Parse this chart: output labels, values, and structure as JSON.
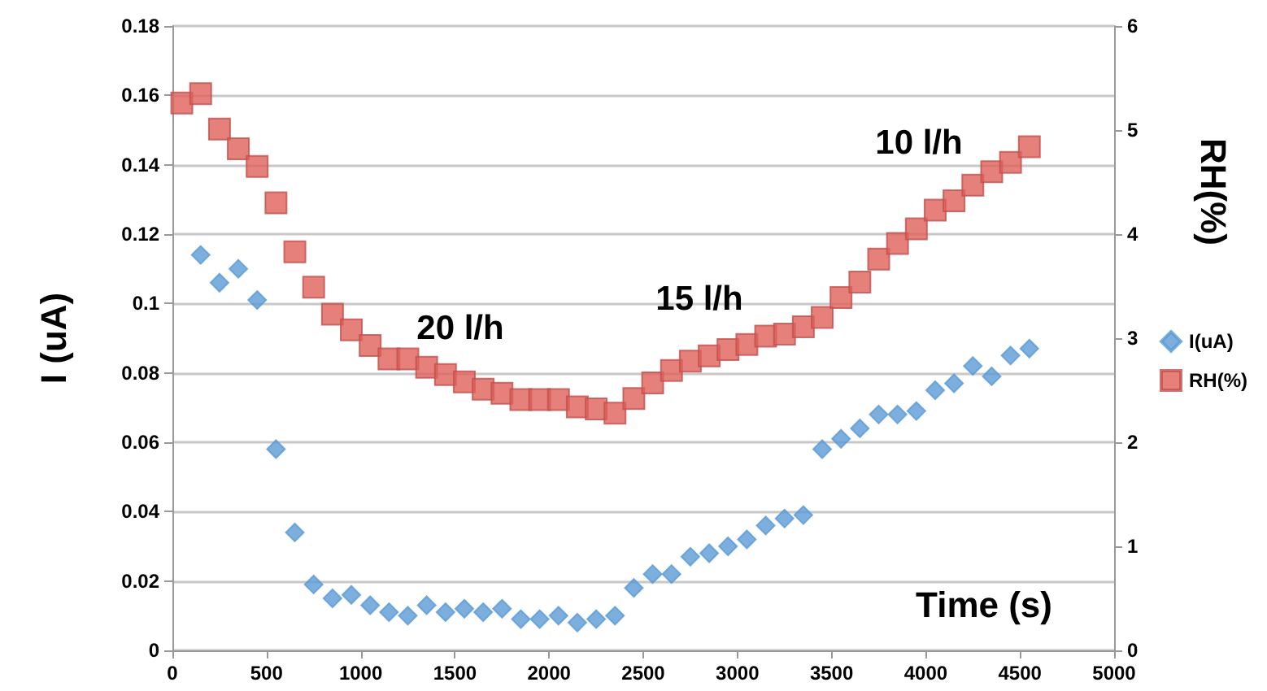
{
  "chart_data": {
    "type": "scatter",
    "xlabel": "Time (s)",
    "ylabel": "I (uA)",
    "y2label": "RH(%)",
    "x": [
      50,
      150,
      250,
      350,
      450,
      550,
      650,
      750,
      850,
      950,
      1050,
      1150,
      1250,
      1350,
      1450,
      1550,
      1650,
      1750,
      1850,
      1950,
      2050,
      2150,
      2250,
      2350,
      2450,
      2550,
      2650,
      2750,
      2850,
      2950,
      3050,
      3150,
      3250,
      3350,
      3450,
      3550,
      3650,
      3750,
      3850,
      3950,
      4050,
      4150,
      4250,
      4350,
      4450,
      4550
    ],
    "series": [
      {
        "name": "I(uA)",
        "color": "#5b9bd5",
        "marker": "diamond",
        "values": [
          null,
          0.114,
          0.106,
          0.11,
          0.101,
          0.058,
          0.034,
          0.019,
          0.015,
          0.016,
          0.013,
          0.011,
          0.01,
          0.013,
          0.011,
          0.012,
          0.011,
          0.012,
          0.009,
          0.009,
          0.01,
          0.008,
          0.009,
          0.01,
          0.018,
          0.022,
          0.022,
          0.027,
          0.028,
          0.03,
          0.032,
          0.036,
          0.038,
          0.039,
          0.058,
          0.061,
          0.064,
          0.068,
          0.068,
          0.069,
          0.075,
          0.077,
          0.082,
          0.079,
          0.085,
          0.087
        ]
      },
      {
        "name": "RH(%)",
        "color": "#e0605a",
        "marker": "square",
        "axis": "y2",
        "values": [
          5.26,
          5.35,
          5.01,
          4.82,
          4.65,
          4.3,
          3.83,
          3.49,
          3.23,
          3.08,
          2.93,
          2.8,
          2.8,
          2.72,
          2.65,
          2.58,
          2.51,
          2.47,
          2.41,
          2.41,
          2.41,
          2.34,
          2.32,
          2.28,
          2.42,
          2.57,
          2.69,
          2.78,
          2.83,
          2.89,
          2.94,
          3.02,
          3.04,
          3.11,
          3.2,
          3.39,
          3.54,
          3.76,
          3.91,
          4.05,
          4.23,
          4.32,
          4.47,
          4.6,
          4.69,
          4.84
        ]
      }
    ],
    "xlim": [
      0,
      5000
    ],
    "xticks": [
      0,
      500,
      1000,
      1500,
      2000,
      2500,
      3000,
      3500,
      4000,
      4500,
      5000
    ],
    "ylim": [
      0,
      0.18
    ],
    "yticks": [
      0,
      0.02,
      0.04,
      0.06,
      0.08,
      0.1,
      0.12,
      0.14,
      0.16,
      0.18
    ],
    "y2lim": [
      0,
      6
    ],
    "y2ticks": [
      0,
      1,
      2,
      3,
      4,
      5,
      6
    ],
    "annotations": [
      "20 l/h",
      "15 l/h",
      "10 l/h"
    ],
    "grid": "y",
    "legend": "right"
  }
}
